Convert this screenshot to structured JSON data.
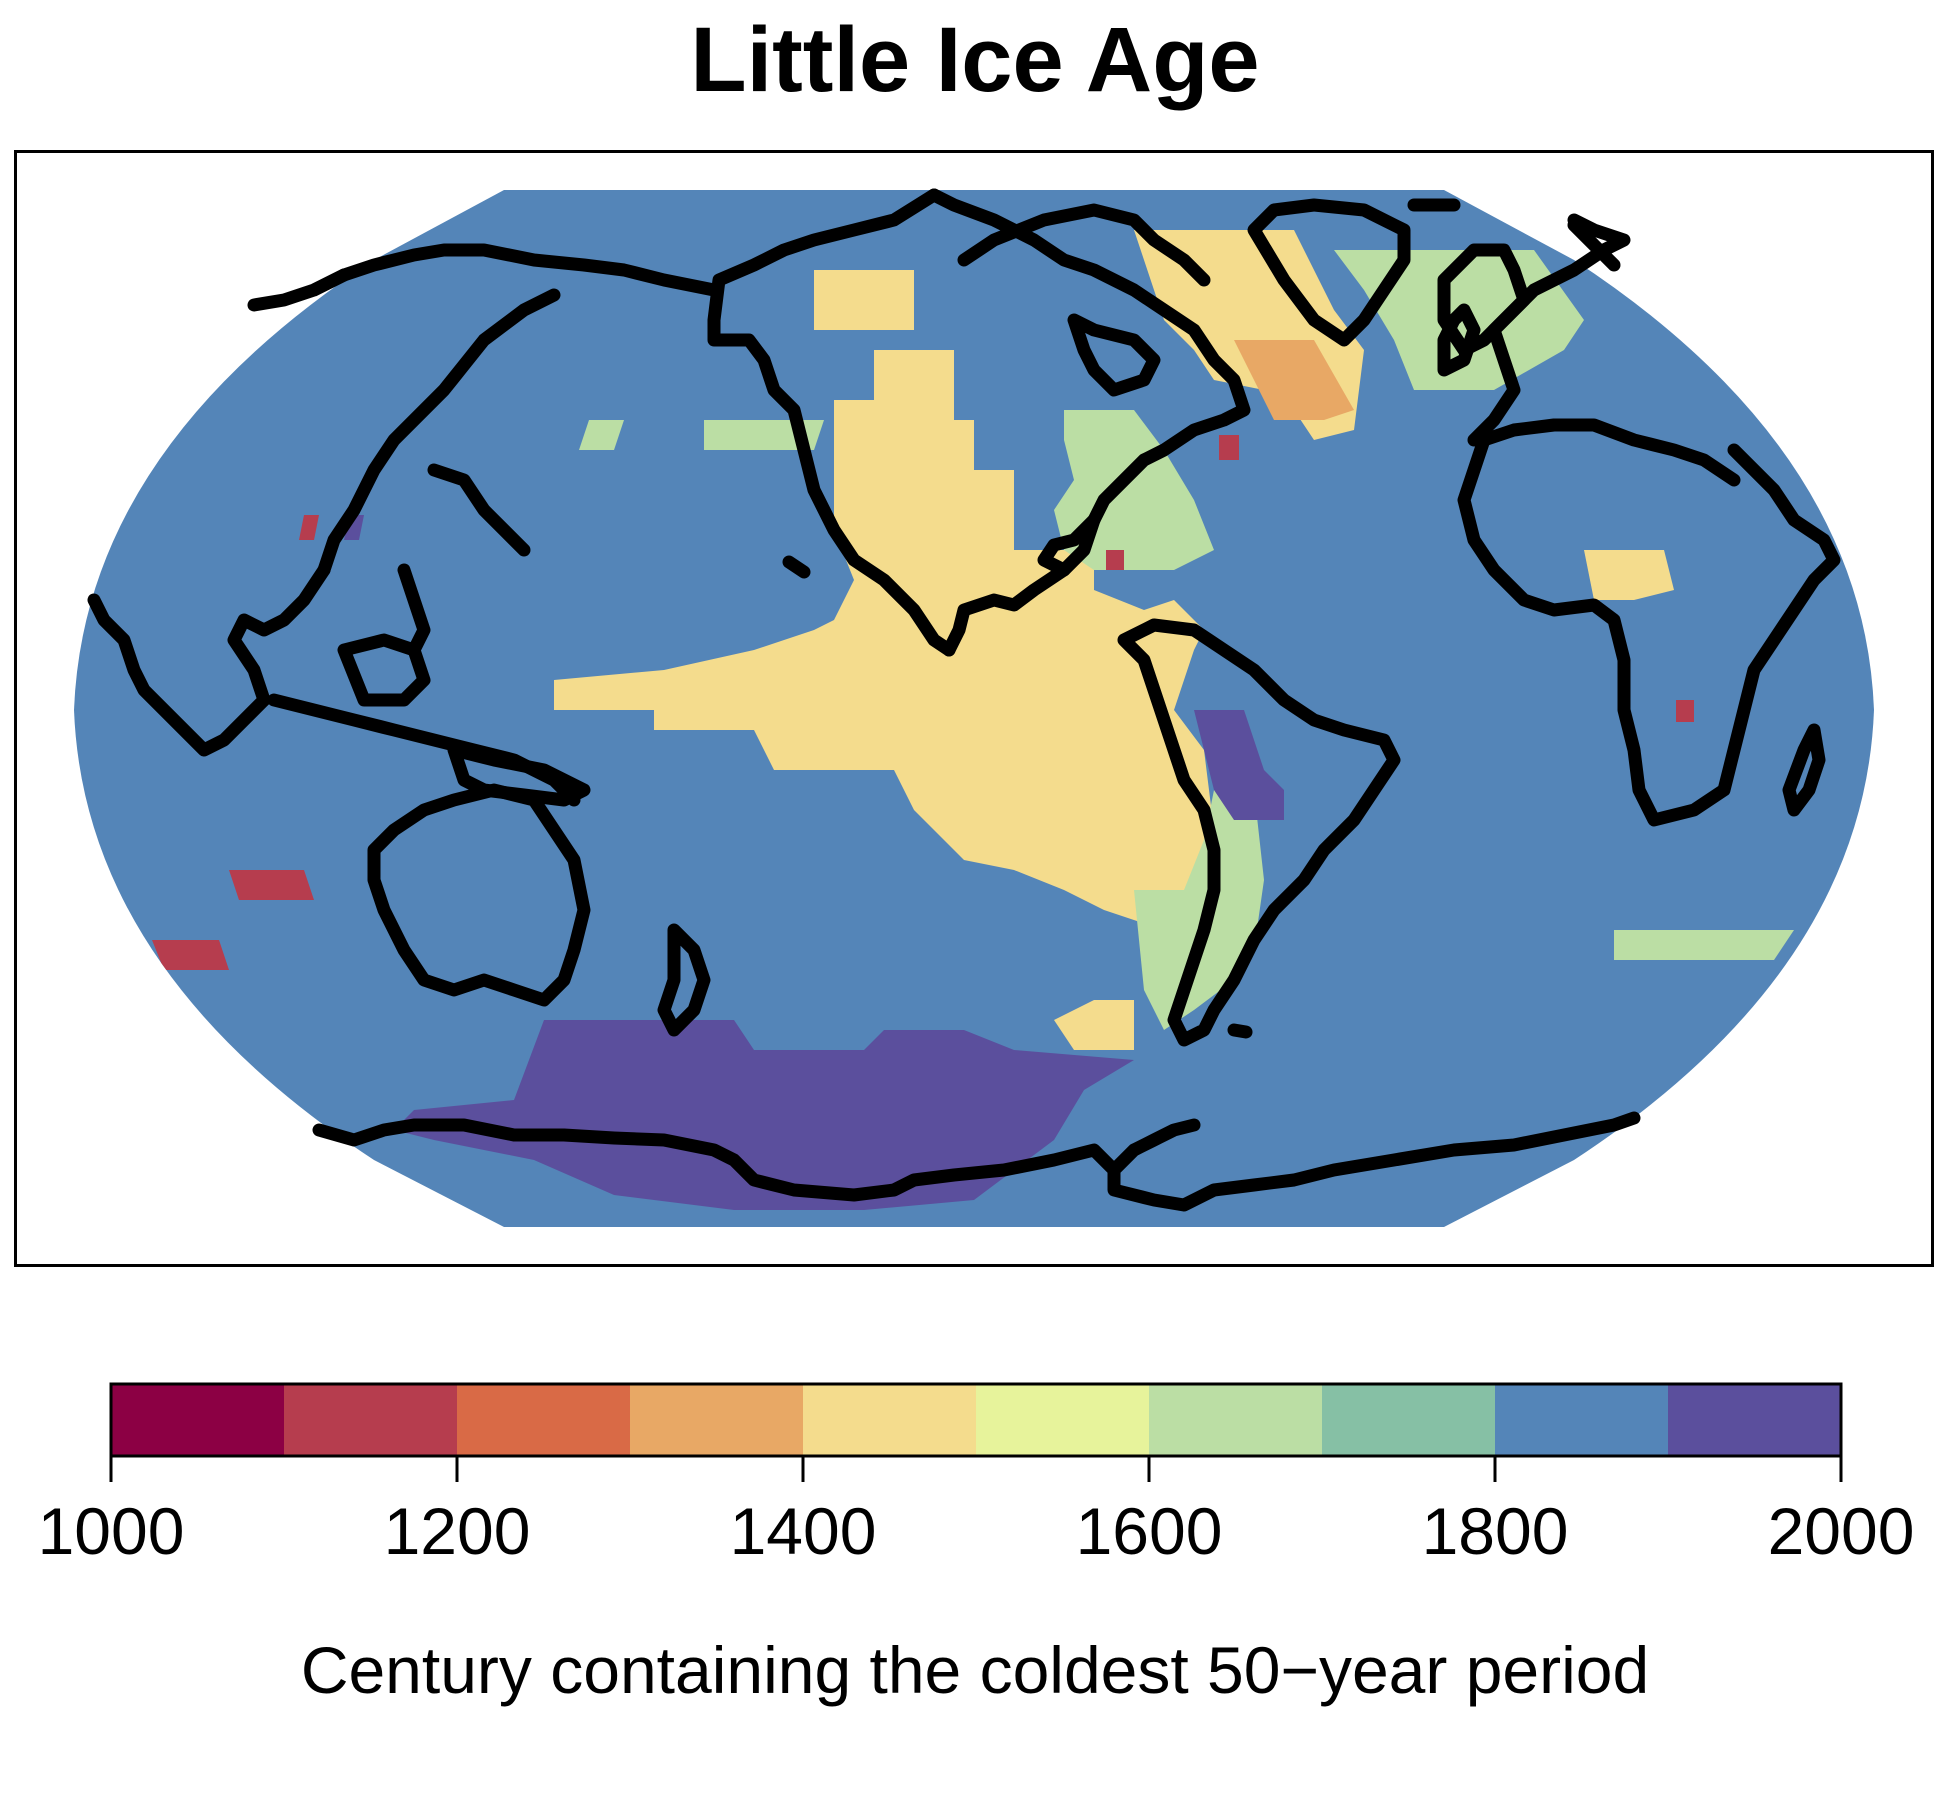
{
  "title": "Little Ice Age",
  "colorbar": {
    "label": "Century containing the coldest 50−year period",
    "tick_labels": [
      "1000",
      "1200",
      "1400",
      "1600",
      "1800",
      "2000"
    ],
    "bins": [
      {
        "from": 1000,
        "to": 1100,
        "color": "#8c0044"
      },
      {
        "from": 1100,
        "to": 1200,
        "color": "#b63d4e"
      },
      {
        "from": 1200,
        "to": 1300,
        "color": "#d96a46"
      },
      {
        "from": 1300,
        "to": 1400,
        "color": "#e8a865"
      },
      {
        "from": 1400,
        "to": 1500,
        "color": "#f4dc8d"
      },
      {
        "from": 1500,
        "to": 1600,
        "color": "#e7f39b"
      },
      {
        "from": 1600,
        "to": 1700,
        "color": "#bbdea4"
      },
      {
        "from": 1700,
        "to": 1800,
        "color": "#86c0a5"
      },
      {
        "from": 1800,
        "to": 1900,
        "color": "#5485b8"
      },
      {
        "from": 1900,
        "to": 2000,
        "color": "#5b4f9d"
      }
    ]
  },
  "map": {
    "projection": "Robinson",
    "background_century": 1800,
    "coastline_color": "#000000",
    "regions": [
      {
        "name": "Central Pacific",
        "century": 1400
      },
      {
        "name": "Eastern Pacific",
        "century": 1400
      },
      {
        "name": "North Pacific coast",
        "century": 1400
      },
      {
        "name": "Eastern North America",
        "century": 1600
      },
      {
        "name": "Greenland / Labrador Sea",
        "century": 1400
      },
      {
        "name": "Northwest Atlantic",
        "century": 1300
      },
      {
        "name": "Northeast Atlantic / Scandinavia",
        "century": 1600
      },
      {
        "name": "Southern Ocean / West Antarctica",
        "century": 1900
      },
      {
        "name": "Southern South America",
        "century": 1600
      },
      {
        "name": "Central South America",
        "century": 1900
      },
      {
        "name": "Northern Africa",
        "century": 1400
      },
      {
        "name": "Western Pacific (south)",
        "century": 1100
      },
      {
        "name": "Southern Indian Ocean",
        "century": 1600
      },
      {
        "name": "North Pacific (central)",
        "century": 1600
      }
    ]
  }
}
